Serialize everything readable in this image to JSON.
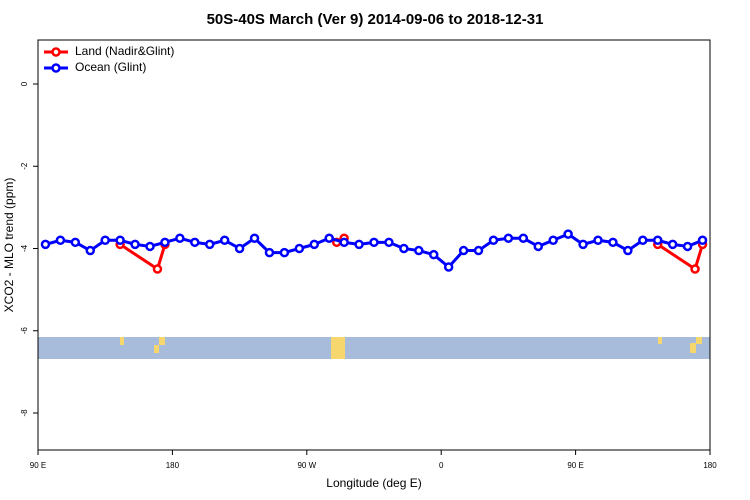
{
  "chart_data": {
    "type": "line",
    "title": "50S-40S March (Ver 9)   2014-09-06 to 2018-12-31",
    "x_label": "Longitude (deg E)",
    "y_label": "XCO2 - MLO trend (ppm)",
    "xlim": [
      90,
      540
    ],
    "ylim": [
      -8.9,
      1.07
    ],
    "xticks": [
      {
        "value": 90,
        "label": "90 E"
      },
      180,
      {
        "value": 270,
        "label": "90 W"
      },
      {
        "value": 360,
        "label": "0"
      },
      {
        "value": 450,
        "label": "90 E"
      },
      {
        "value": 540,
        "label": "180"
      }
    ],
    "yticks": [
      0,
      -2,
      -4,
      -6,
      -8
    ],
    "legend": "top-left",
    "series": [
      {
        "name": "Land (Nadir&Glint)",
        "color": "#ff0000",
        "x": [
          145,
          170,
          175,
          230,
          290,
          295,
          400,
          505,
          530,
          535
        ],
        "values": [
          -3.9,
          -4.5,
          -3.9,
          null,
          -3.85,
          -3.75,
          null,
          -3.9,
          -4.5,
          -3.9
        ]
      },
      {
        "name": "Ocean (Glint)",
        "color": "#0000ff",
        "x": [
          95,
          105,
          115,
          125,
          135,
          145,
          155,
          165,
          175,
          185,
          195,
          205,
          215,
          225,
          235,
          245,
          255,
          265,
          275,
          285,
          295,
          305,
          315,
          325,
          335,
          345,
          355,
          365,
          375,
          385,
          395,
          405,
          415,
          425,
          435,
          445,
          455,
          465,
          475,
          485,
          495,
          505,
          515,
          525,
          535
        ],
        "values": [
          -3.9,
          -3.8,
          -3.85,
          -4.05,
          -3.8,
          -3.8,
          -3.9,
          -3.95,
          -3.85,
          -3.75,
          -3.85,
          -3.9,
          -3.8,
          -4.0,
          -3.75,
          -4.1,
          -4.1,
          -4.0,
          -3.9,
          -3.75,
          -3.85,
          -3.9,
          -3.85,
          -3.85,
          -4.0,
          -4.05,
          -4.15,
          -4.45,
          -4.05,
          -4.05,
          -3.8,
          -3.75,
          -3.75,
          -3.95,
          -3.8,
          -3.65,
          -3.9,
          -3.8,
          -3.85,
          -4.05,
          -3.8,
          -3.8,
          -3.9,
          -3.95,
          -3.8
        ]
      }
    ]
  }
}
